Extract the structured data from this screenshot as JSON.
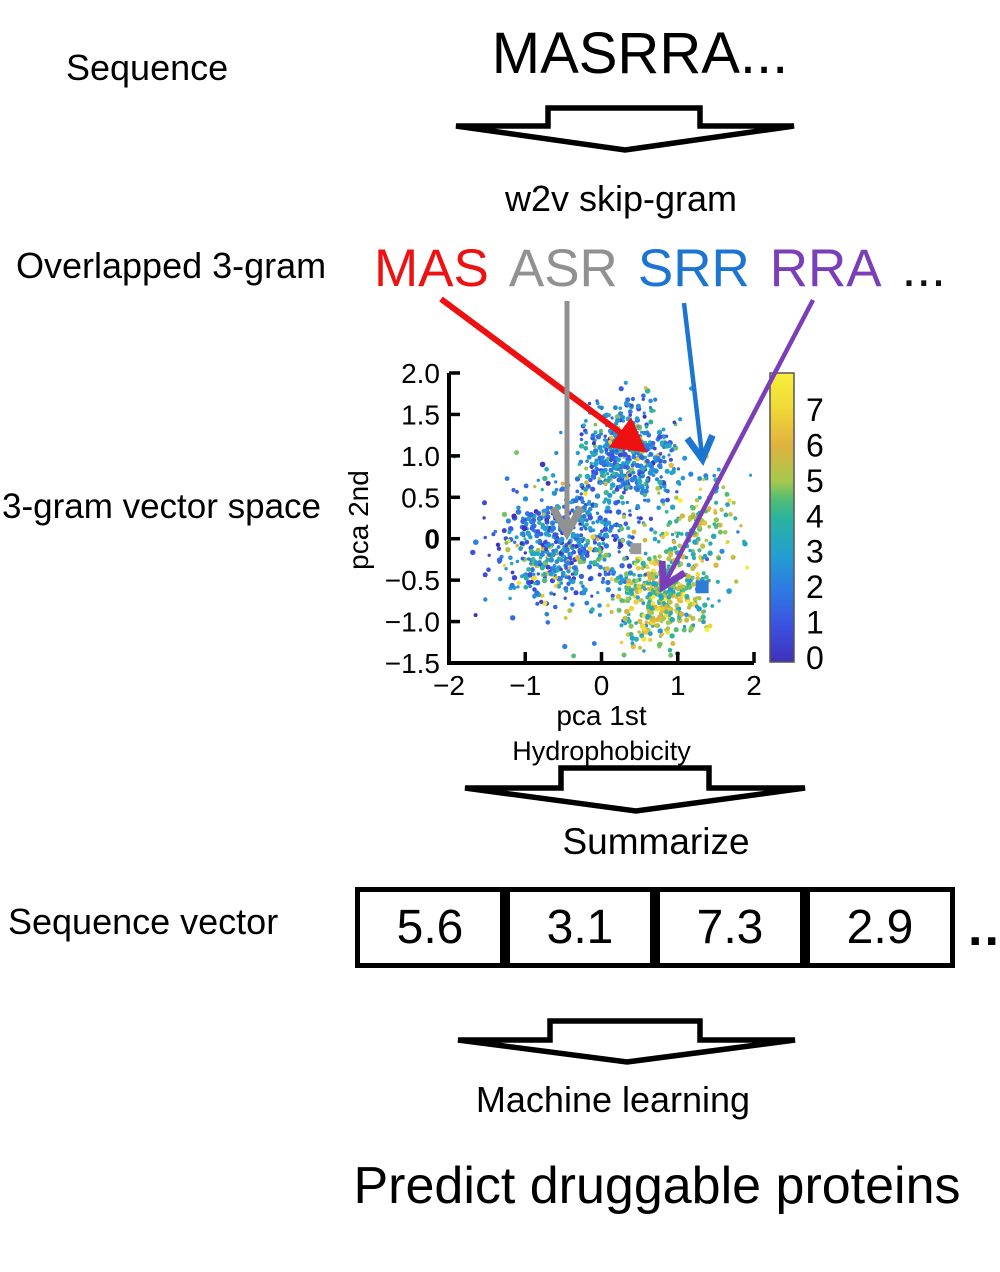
{
  "labels": {
    "sequence": "Sequence",
    "sequence_value": "MASRRA...",
    "w2v": "w2v skip-gram",
    "overlapped": "Overlapped 3-gram",
    "vector_space": "3-gram vector space",
    "summarize": "Summarize",
    "sequence_vector": "Sequence vector",
    "machine_learning": "Machine learning",
    "predict": "Predict druggable proteins"
  },
  "ngrams": [
    {
      "text": "MAS",
      "color": "#ee1111"
    },
    {
      "text": "ASR",
      "color": "#919191"
    },
    {
      "text": "SRR",
      "color": "#1b75d1"
    },
    {
      "text": "RRA",
      "color": "#7a3fb8"
    },
    {
      "text": "...",
      "color": "#111111"
    }
  ],
  "sequence_vector": {
    "values": [
      "5.6",
      "3.1",
      "7.3",
      "2.9"
    ],
    "ellipsis": "..."
  },
  "chart_data": {
    "type": "scatter",
    "xlabel": "pca 1st",
    "ylabel": "pca 2nd",
    "colorbar_label": "Hydrophobicity",
    "xlim": [
      -2,
      2
    ],
    "ylim": [
      -1.5,
      2
    ],
    "xticks": [
      "−2",
      "−1",
      "0",
      "1",
      "2"
    ],
    "xtick_vals": [
      -2,
      -1,
      0,
      1,
      2
    ],
    "yticks": [
      "2.0",
      "1.5",
      "1.0",
      "0.5",
      "0",
      "−0.5",
      "−1.0",
      "−1.5"
    ],
    "ytick_vals": [
      2,
      1.5,
      1,
      0.5,
      0,
      -0.5,
      -1,
      -1.5
    ],
    "ytick_bold_index": 4,
    "colorbar_ticks": [
      "0",
      "1",
      "2",
      "3",
      "4",
      "5",
      "6",
      "7"
    ],
    "colorbar_tick_vals": [
      0,
      1,
      2,
      3,
      4,
      5,
      6,
      7
    ],
    "colorbar_range": [
      0,
      8
    ],
    "colormap_stops": [
      [
        0.0,
        "#3e32ba"
      ],
      [
        0.125,
        "#3c51e0"
      ],
      [
        0.25,
        "#2e7be4"
      ],
      [
        0.375,
        "#23a0cf"
      ],
      [
        0.5,
        "#2bb49d"
      ],
      [
        0.5625,
        "#52bd74"
      ],
      [
        0.625,
        "#a5c84e"
      ],
      [
        0.75,
        "#e0b23f"
      ],
      [
        0.875,
        "#f0d838"
      ],
      [
        1.0,
        "#f8ef3b"
      ]
    ],
    "seed": 42,
    "clusters": [
      {
        "name": "top",
        "n": 480,
        "cx": 0.35,
        "cy": 1.02,
        "sx": 0.3,
        "sy": 0.3,
        "vmean": 2.3,
        "vsd": 1.1,
        "outlier_frac": 0.05,
        "outlier_vmin": 4.5,
        "outlier_vmax": 7.0
      },
      {
        "name": "left",
        "n": 600,
        "cx": -0.5,
        "cy": -0.07,
        "sx": 0.4,
        "sy": 0.34,
        "vmean": 2.1,
        "vsd": 1.2,
        "outlier_frac": 0.07,
        "outlier_vmin": 4.5,
        "outlier_vmax": 7.5
      },
      {
        "name": "bottom-right",
        "n": 430,
        "cx": 0.78,
        "cy": -0.68,
        "sx": 0.29,
        "sy": 0.28,
        "vmean": 5.3,
        "vsd": 1.3,
        "outlier_frac": 0.12,
        "outlier_vmin": 2.5,
        "outlier_vmax": 4.0
      },
      {
        "name": "right",
        "n": 130,
        "cx": 1.33,
        "cy": 0.15,
        "sx": 0.28,
        "sy": 0.36,
        "vmean": 4.8,
        "vsd": 1.6,
        "outlier_frac": 0.15,
        "outlier_vmin": 2.0,
        "outlier_vmax": 3.5
      },
      {
        "name": "noise",
        "n": 70,
        "cx": 0.1,
        "cy": 0.1,
        "sx": 0.95,
        "sy": 0.75,
        "vmean": 3.5,
        "vsd": 1.5,
        "outlier_frac": 0.0,
        "outlier_vmin": 0,
        "outlier_vmax": 0
      }
    ],
    "markers": [
      {
        "shape": "square",
        "color": "#9a9a9a",
        "x": 0.45,
        "y": -0.12,
        "size": 11
      },
      {
        "shape": "square",
        "color": "#2e7bd8",
        "x": 1.32,
        "y": -0.58,
        "size": 13
      }
    ]
  },
  "connector_arrows": [
    {
      "name": "mas-arrow",
      "color": "#ee1111",
      "width": 6,
      "head": "solid",
      "from": [
        441,
        299
      ],
      "to": [
        641,
        448
      ]
    },
    {
      "name": "asr-arrow",
      "color": "#919191",
      "width": 5,
      "head": "chevron",
      "from": [
        567,
        301
      ],
      "to": [
        567,
        528
      ]
    },
    {
      "name": "srr-arrow",
      "color": "#1b75d1",
      "width": 4.5,
      "head": "chevron",
      "from": [
        684,
        303
      ],
      "to": [
        702,
        455
      ]
    },
    {
      "name": "rra-arrow",
      "color": "#7a3fb8",
      "width": 4.5,
      "head": "chevron",
      "from": [
        813,
        300
      ],
      "to": [
        665,
        583
      ]
    }
  ]
}
